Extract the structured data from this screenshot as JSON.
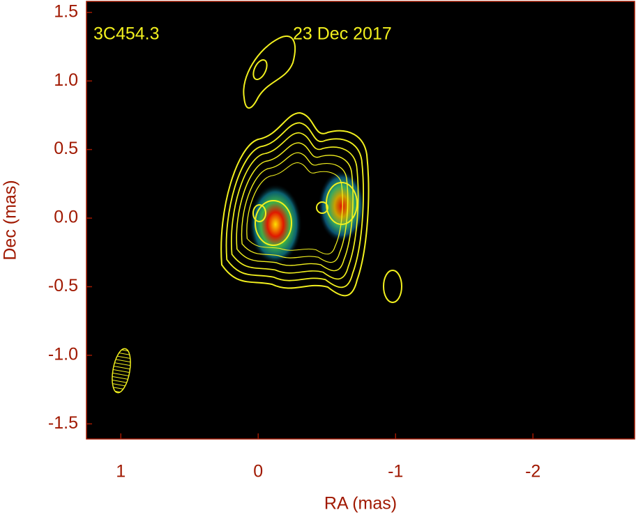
{
  "chart_data": {
    "type": "image",
    "title": "23 Dec 2017",
    "source": "3C454.3",
    "x_label": "RA (mas)",
    "y_label": "Dec (mas)",
    "xlim": [
      1.25,
      -2.74
    ],
    "ylim": [
      -1.61,
      1.58
    ],
    "xticks": [
      1,
      0,
      -1,
      -2
    ],
    "yticks": [
      1.5,
      {
        "value": 1,
        "label": "1.0"
      },
      0.5,
      {
        "value": 0,
        "label": "0.0"
      },
      -0.5,
      {
        "value": -1,
        "label": "-1.0"
      },
      -1.5
    ],
    "axis_color": "#a01800",
    "contour_color": "#f2f01e"
  }
}
